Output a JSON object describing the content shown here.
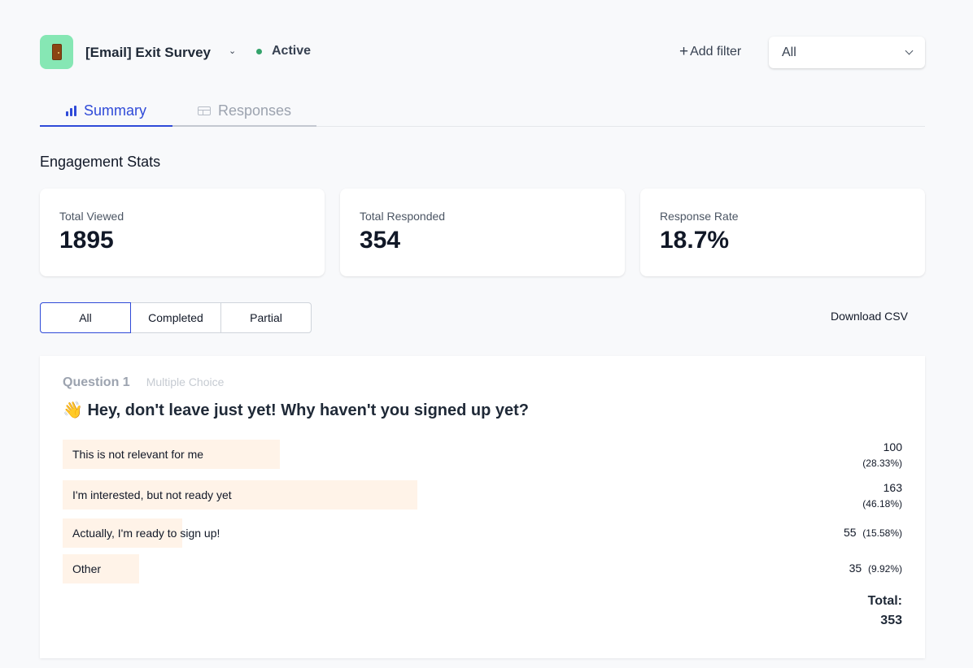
{
  "header": {
    "survey_title": "[Email] Exit Survey",
    "status": "Active",
    "status_color": "#34a36b",
    "icon": "door-icon",
    "add_filter_label": "Add filter",
    "filter_value": "All"
  },
  "tabs": [
    {
      "label": "Summary",
      "icon": "bar-chart-icon",
      "active": true
    },
    {
      "label": "Responses",
      "icon": "table-icon",
      "active": false
    }
  ],
  "engagement": {
    "title": "Engagement Stats",
    "stats": [
      {
        "label": "Total Viewed",
        "value": "1895"
      },
      {
        "label": "Total Responded",
        "value": "354"
      },
      {
        "label": "Response Rate",
        "value": "18.7%"
      }
    ]
  },
  "response_filter": {
    "options": [
      "All",
      "Completed",
      "Partial"
    ],
    "selected": "All",
    "download_label": "Download CSV"
  },
  "question": {
    "number_label": "Question 1",
    "type_label": "Multiple Choice",
    "title": "👋 Hey, don't leave just yet! Why haven't you signed up yet?",
    "choices": [
      {
        "label": "This is not relevant for me",
        "count": "100",
        "percent": "(28.33%)",
        "share": 0.2833
      },
      {
        "label": "I'm interested, but not ready yet",
        "count": "163",
        "percent": "(46.18%)",
        "share": 0.4618
      },
      {
        "label": "Actually, I'm ready to sign up!",
        "count": "55",
        "percent": "(15.58%)",
        "share": 0.1558
      },
      {
        "label": "Other",
        "count": "35",
        "percent": "(9.92%)",
        "share": 0.0992
      }
    ],
    "total_label": "Total:",
    "total_value": "353"
  },
  "colors": {
    "accent": "#2f4ad8",
    "bar_fill": "#fff3e8",
    "page_bg": "#f8f9fb"
  }
}
